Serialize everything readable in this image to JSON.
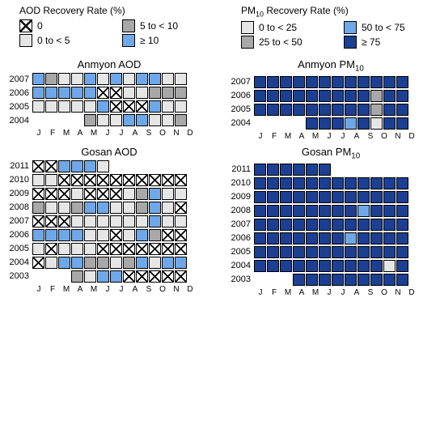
{
  "months": [
    "J",
    "F",
    "M",
    "A",
    "M",
    "J",
    "J",
    "A",
    "S",
    "O",
    "N",
    "D"
  ],
  "colors": {
    "x": "#ffffff",
    "lightgray": "#e6e6e6",
    "gray": "#a8a8a8",
    "lightblue": "#6fa8e8",
    "darkblue": "#1c3f94",
    "empty": "transparent",
    "border": "#000000",
    "background": "#ffffff"
  },
  "legends": [
    {
      "title": "AOD Recovery Rate (%)",
      "items": [
        {
          "swatch": "x",
          "label": "0"
        },
        {
          "swatch": "gray",
          "label": "5 to < 10"
        },
        {
          "swatch": "lightgray",
          "label": "0 to < 5"
        },
        {
          "swatch": "lightblue",
          "label": "≥ 10"
        }
      ]
    },
    {
      "title_html": "PM<sub>10</sub> Recovery Rate (%)",
      "items": [
        {
          "swatch": "lightgray",
          "label": "0 to < 25"
        },
        {
          "swatch": "lightblue",
          "label": "50 to < 75"
        },
        {
          "swatch": "gray",
          "label": "25 to < 50"
        },
        {
          "swatch": "darkblue",
          "label": "≥ 75"
        }
      ]
    }
  ],
  "panels": [
    [
      {
        "title": "Anmyon AOD",
        "years": [
          {
            "year": "2007",
            "cells": [
              "lightblue",
              "gray",
              "lightgray",
              "lightgray",
              "lightblue",
              "lightgray",
              "lightblue",
              "lightgray",
              "lightblue",
              "lightblue",
              "lightgray",
              "lightgray"
            ]
          },
          {
            "year": "2006",
            "cells": [
              "lightblue",
              "lightblue",
              "lightblue",
              "lightblue",
              "lightblue",
              "x",
              "x",
              "lightgray",
              "lightgray",
              "gray",
              "gray",
              "gray"
            ]
          },
          {
            "year": "2005",
            "cells": [
              "lightgray",
              "lightgray",
              "lightgray",
              "lightgray",
              "lightgray",
              "lightblue",
              "x",
              "x",
              "x",
              "lightblue",
              "lightgray",
              "lightgray"
            ]
          },
          {
            "year": "2004",
            "cells": [
              "empty",
              "empty",
              "empty",
              "empty",
              "gray",
              "lightgray",
              "lightgray",
              "lightblue",
              "lightblue",
              "lightgray",
              "lightgray",
              "gray"
            ]
          }
        ]
      },
      {
        "title_html": "Anmyon PM<sub>10</sub>",
        "years": [
          {
            "year": "2007",
            "cells": [
              "darkblue",
              "darkblue",
              "darkblue",
              "darkblue",
              "darkblue",
              "darkblue",
              "darkblue",
              "darkblue",
              "darkblue",
              "darkblue",
              "darkblue",
              "darkblue"
            ]
          },
          {
            "year": "2006",
            "cells": [
              "darkblue",
              "darkblue",
              "darkblue",
              "darkblue",
              "darkblue",
              "darkblue",
              "darkblue",
              "darkblue",
              "darkblue",
              "gray",
              "darkblue",
              "darkblue"
            ]
          },
          {
            "year": "2005",
            "cells": [
              "darkblue",
              "darkblue",
              "darkblue",
              "darkblue",
              "darkblue",
              "darkblue",
              "darkblue",
              "darkblue",
              "darkblue",
              "gray",
              "darkblue",
              "darkblue"
            ]
          },
          {
            "year": "2004",
            "cells": [
              "empty",
              "empty",
              "empty",
              "empty",
              "darkblue",
              "darkblue",
              "darkblue",
              "lightblue",
              "darkblue",
              "lightgray",
              "darkblue",
              "darkblue"
            ]
          }
        ]
      }
    ],
    [
      {
        "title": "Gosan AOD",
        "years": [
          {
            "year": "2011",
            "cells": [
              "x",
              "x",
              "lightblue",
              "lightblue",
              "lightblue",
              "lightgray",
              "empty",
              "empty",
              "empty",
              "empty",
              "empty",
              "empty"
            ]
          },
          {
            "year": "2010",
            "cells": [
              "lightgray",
              "lightgray",
              "x",
              "x",
              "x",
              "x",
              "x",
              "x",
              "x",
              "x",
              "x",
              "x"
            ]
          },
          {
            "year": "2009",
            "cells": [
              "x",
              "x",
              "x",
              "lightgray",
              "x",
              "x",
              "x",
              "lightgray",
              "gray",
              "lightblue",
              "lightgray",
              "lightgray"
            ]
          },
          {
            "year": "2008",
            "cells": [
              "gray",
              "lightgray",
              "lightgray",
              "gray",
              "lightblue",
              "lightblue",
              "lightgray",
              "lightgray",
              "gray",
              "lightblue",
              "lightgray",
              "x"
            ]
          },
          {
            "year": "2007",
            "cells": [
              "x",
              "x",
              "x",
              "lightgray",
              "lightgray",
              "lightgray",
              "lightgray",
              "lightgray",
              "lightgray",
              "lightblue",
              "lightgray",
              "lightgray"
            ]
          },
          {
            "year": "2006",
            "cells": [
              "lightblue",
              "lightblue",
              "lightblue",
              "lightblue",
              "lightgray",
              "lightgray",
              "x",
              "lightgray",
              "lightblue",
              "gray",
              "x",
              "x"
            ]
          },
          {
            "year": "2005",
            "cells": [
              "lightgray",
              "x",
              "lightgray",
              "lightgray",
              "lightgray",
              "x",
              "x",
              "x",
              "x",
              "x",
              "x",
              "x"
            ]
          },
          {
            "year": "2004",
            "cells": [
              "x",
              "lightgray",
              "lightblue",
              "lightblue",
              "gray",
              "gray",
              "lightgray",
              "gray",
              "lightblue",
              "lightgray",
              "lightblue",
              "lightblue"
            ]
          },
          {
            "year": "2003",
            "cells": [
              "empty",
              "empty",
              "empty",
              "gray",
              "lightgray",
              "lightblue",
              "lightblue",
              "x",
              "x",
              "x",
              "x",
              "x"
            ]
          }
        ]
      },
      {
        "title_html": "Gosan PM<sub>10</sub>",
        "years": [
          {
            "year": "2011",
            "cells": [
              "darkblue",
              "darkblue",
              "darkblue",
              "darkblue",
              "darkblue",
              "darkblue",
              "empty",
              "empty",
              "empty",
              "empty",
              "empty",
              "empty"
            ]
          },
          {
            "year": "2010",
            "cells": [
              "darkblue",
              "darkblue",
              "darkblue",
              "darkblue",
              "darkblue",
              "darkblue",
              "darkblue",
              "darkblue",
              "darkblue",
              "darkblue",
              "darkblue",
              "darkblue"
            ]
          },
          {
            "year": "2009",
            "cells": [
              "darkblue",
              "darkblue",
              "darkblue",
              "darkblue",
              "darkblue",
              "darkblue",
              "darkblue",
              "darkblue",
              "darkblue",
              "darkblue",
              "darkblue",
              "darkblue"
            ]
          },
          {
            "year": "2008",
            "cells": [
              "darkblue",
              "darkblue",
              "darkblue",
              "darkblue",
              "darkblue",
              "darkblue",
              "darkblue",
              "darkblue",
              "lightblue",
              "darkblue",
              "darkblue",
              "darkblue"
            ]
          },
          {
            "year": "2007",
            "cells": [
              "darkblue",
              "darkblue",
              "darkblue",
              "darkblue",
              "darkblue",
              "darkblue",
              "darkblue",
              "darkblue",
              "darkblue",
              "darkblue",
              "darkblue",
              "darkblue"
            ]
          },
          {
            "year": "2006",
            "cells": [
              "darkblue",
              "darkblue",
              "darkblue",
              "darkblue",
              "darkblue",
              "darkblue",
              "darkblue",
              "lightblue",
              "darkblue",
              "darkblue",
              "darkblue",
              "darkblue"
            ]
          },
          {
            "year": "2005",
            "cells": [
              "darkblue",
              "darkblue",
              "darkblue",
              "darkblue",
              "darkblue",
              "darkblue",
              "darkblue",
              "darkblue",
              "darkblue",
              "darkblue",
              "darkblue",
              "darkblue"
            ]
          },
          {
            "year": "2004",
            "cells": [
              "darkblue",
              "darkblue",
              "darkblue",
              "darkblue",
              "darkblue",
              "darkblue",
              "darkblue",
              "darkblue",
              "darkblue",
              "darkblue",
              "lightgray",
              "darkblue"
            ]
          },
          {
            "year": "2003",
            "cells": [
              "empty",
              "empty",
              "empty",
              "darkblue",
              "darkblue",
              "darkblue",
              "darkblue",
              "darkblue",
              "darkblue",
              "darkblue",
              "darkblue",
              "darkblue"
            ]
          }
        ]
      }
    ]
  ]
}
